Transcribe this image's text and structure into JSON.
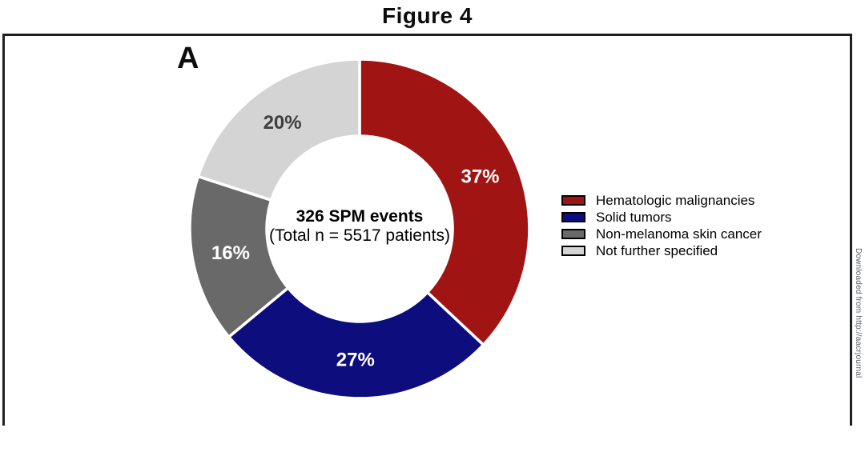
{
  "figure": {
    "title": "Figure 4",
    "panel_label": "A"
  },
  "watermark": {
    "text": "Downloaded from http://aacrjournal"
  },
  "chart_data": {
    "type": "pie",
    "subtype": "donut",
    "title": "Figure 4",
    "panel": "A",
    "start_angle_deg": 0,
    "direction": "clockwise",
    "center_label": {
      "line1": "326 SPM events",
      "line2": "(Total n = 5517 patients)"
    },
    "legend_position": "right",
    "segments": [
      {
        "label": "Hematologic malignancies",
        "value_pct": 37,
        "color": "#A01414",
        "pct_text": "37%",
        "pct_text_color": "#ffffff"
      },
      {
        "label": "Solid tumors",
        "value_pct": 27,
        "color": "#0D0D7D",
        "pct_text": "27%",
        "pct_text_color": "#ffffff"
      },
      {
        "label": "Non-melanoma skin cancer",
        "value_pct": 16,
        "color": "#696969",
        "pct_text": "16%",
        "pct_text_color": "#ffffff"
      },
      {
        "label": "Not further specified",
        "value_pct": 20,
        "color": "#D4D4D4",
        "pct_text": "20%",
        "pct_text_color": "#3F3F3F"
      }
    ]
  }
}
